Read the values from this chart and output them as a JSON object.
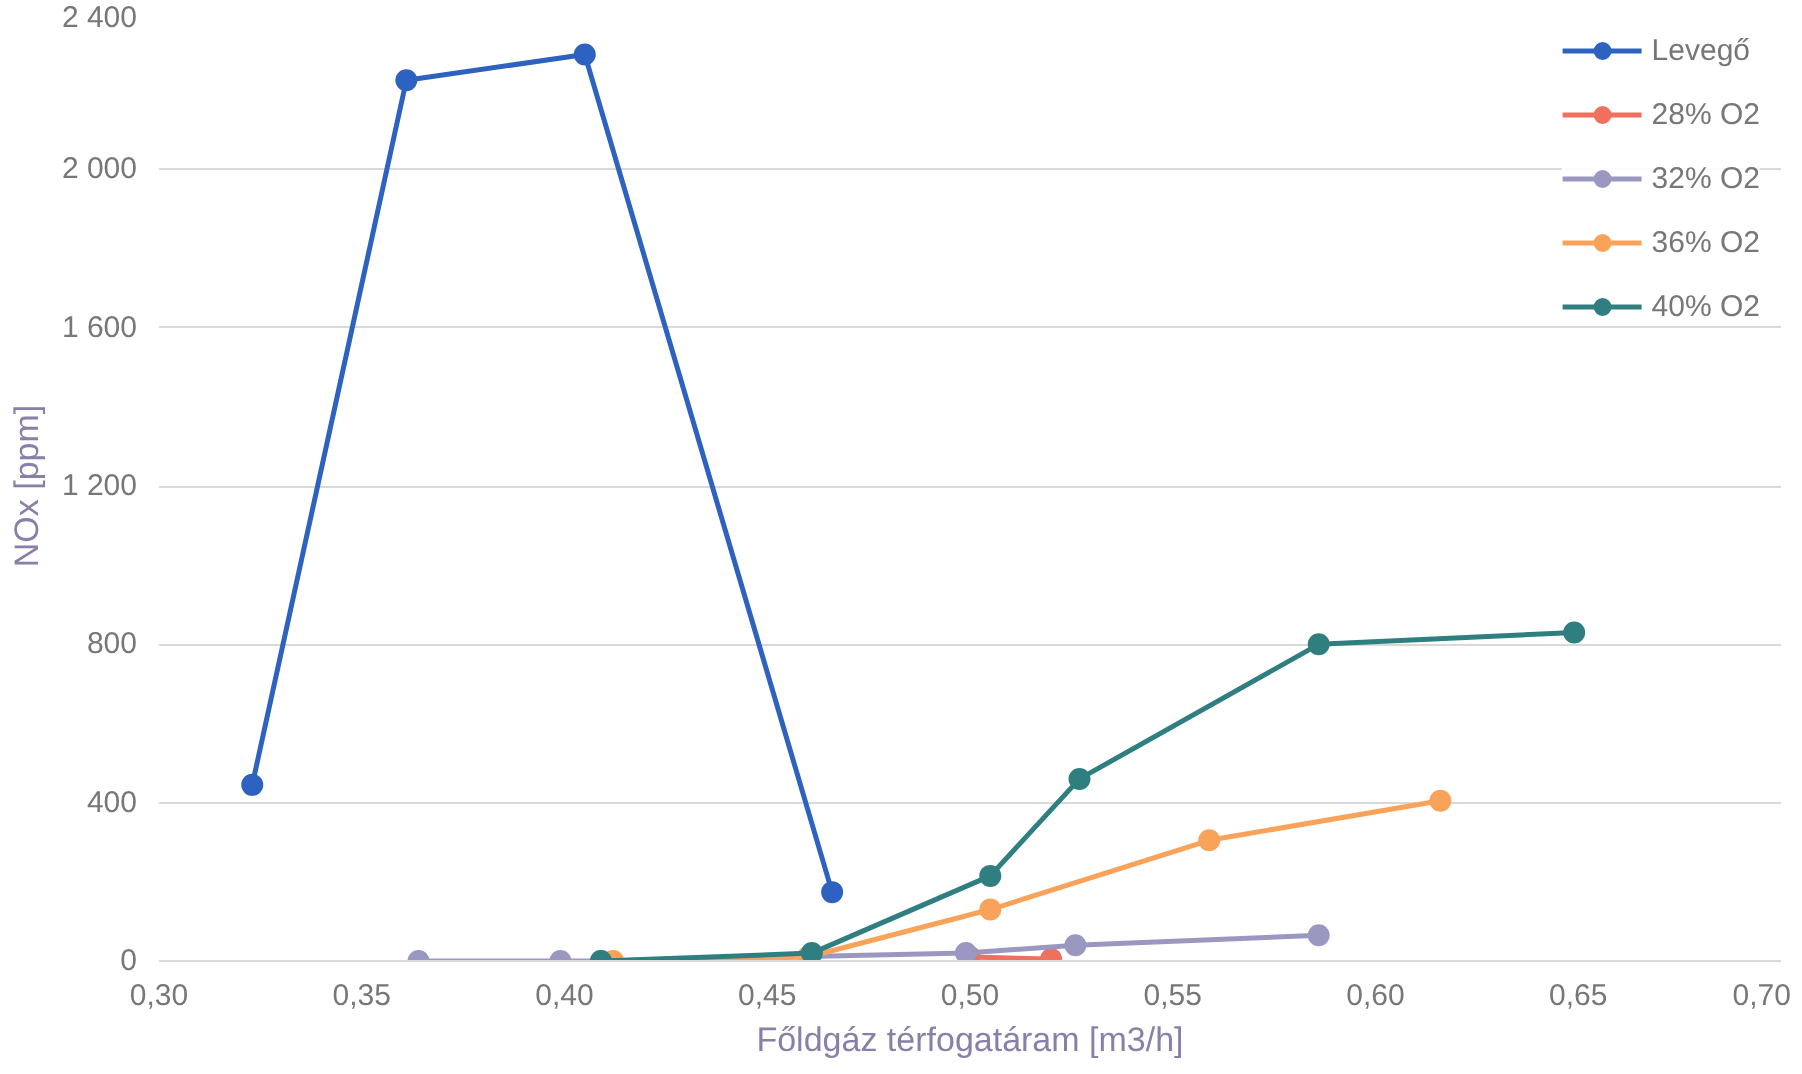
{
  "chart_data": {
    "type": "line",
    "xlabel": "Főldgáz térfogatáram [m3/h]",
    "ylabel": "NOx [ppm]",
    "xlim": [
      0.3,
      0.7
    ],
    "ylim": [
      0,
      2400
    ],
    "xticks": [
      {
        "value": 0.3,
        "label": "0,30"
      },
      {
        "value": 0.35,
        "label": "0,35"
      },
      {
        "value": 0.4,
        "label": "0,40"
      },
      {
        "value": 0.45,
        "label": "0,45"
      },
      {
        "value": 0.5,
        "label": "0,50"
      },
      {
        "value": 0.55,
        "label": "0,55"
      },
      {
        "value": 0.6,
        "label": "0,60"
      },
      {
        "value": 0.65,
        "label": "0,65"
      },
      {
        "value": 0.7,
        "label": "0,70"
      }
    ],
    "yticks": [
      0,
      400,
      800,
      {
        "value": 1200,
        "label": "1 200"
      },
      {
        "value": 1600,
        "label": "1 600"
      },
      {
        "value": 2000,
        "label": "2 000"
      },
      {
        "value": 2400,
        "label": "2 400"
      }
    ],
    "grid": "y",
    "legend": "top right",
    "marker": "circle",
    "line_style": "solid",
    "series": [
      {
        "name": "Levegő",
        "color": "#2e62c0",
        "x": [
          0.323,
          0.361,
          0.405,
          0.466
        ],
        "values": [
          445,
          2225,
          2290,
          174
        ]
      },
      {
        "name": "28% O2",
        "color": "#f07060",
        "x": [
          0.5,
          0.52
        ],
        "values": [
          10,
          5
        ]
      },
      {
        "name": "32% O2",
        "color": "#9a98c0",
        "x": [
          0.364,
          0.399,
          0.409,
          0.499,
          0.526,
          0.586
        ],
        "values": [
          0,
          0,
          0,
          20,
          40,
          65
        ]
      },
      {
        "name": "36% O2",
        "color": "#f9a35a",
        "x": [
          0.412,
          0.46,
          0.505,
          0.559,
          0.616
        ],
        "values": [
          0,
          10,
          130,
          305,
          405
        ]
      },
      {
        "name": "40% O2",
        "color": "#2f7f80",
        "x": [
          0.409,
          0.461,
          0.505,
          0.527,
          0.586,
          0.649
        ],
        "values": [
          0,
          20,
          215,
          460,
          800,
          830
        ]
      }
    ]
  }
}
